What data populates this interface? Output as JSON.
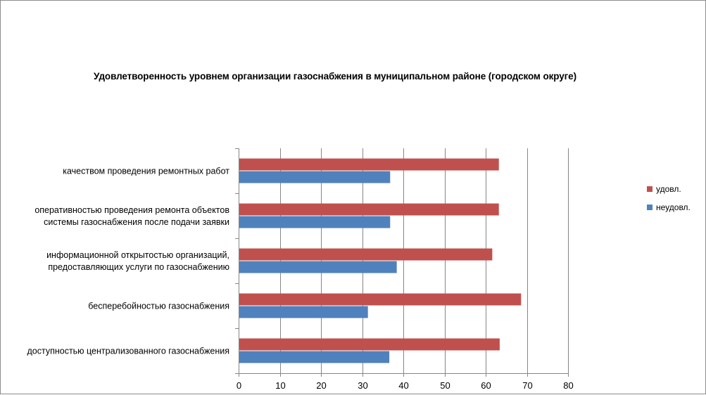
{
  "chart_data": {
    "type": "bar",
    "orientation": "horizontal",
    "title": "Удовлетворенность уровнем организации газоснабжения в муниципальном районе (городском округе)",
    "xlabel": "",
    "ylabel": "",
    "xlim": [
      0,
      80
    ],
    "xticks": [
      "0",
      "10",
      "20",
      "30",
      "40",
      "50",
      "60",
      "70",
      "80"
    ],
    "grid": true,
    "legend_position": "right",
    "categories": [
      [
        "качеством  проведения  ремонтных  работ"
      ],
      [
        "оперативностью  проведения  ремонта  объектов",
        "системы газоснабжения после подачи заявки"
      ],
      [
        "информационной  открытостью организаций,",
        "предоставляющих  услуги по газоснабжению"
      ],
      [
        "бесперебойностью  газоснабжения"
      ],
      [
        "доступностью централизованного газоснабжения"
      ]
    ],
    "series": [
      {
        "name": "удовл.",
        "color": "#c0504d",
        "values": [
          63.2,
          63.2,
          61.6,
          68.6,
          63.4
        ]
      },
      {
        "name": "неудовл.",
        "color": "#4f81bd",
        "values": [
          36.8,
          36.8,
          38.4,
          31.4,
          36.6
        ]
      }
    ]
  }
}
